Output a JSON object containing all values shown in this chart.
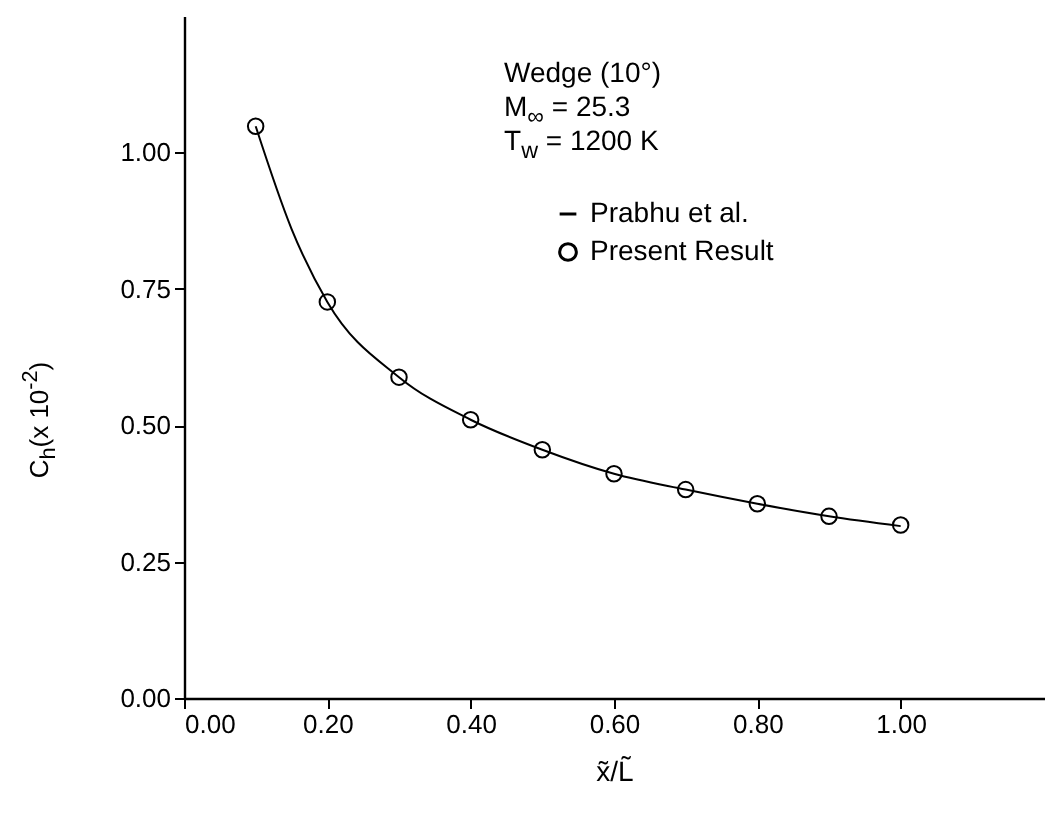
{
  "chart_data": {
    "type": "line",
    "xlabel": "x̃/L̃",
    "ylabel": "C$_{h}$(x 10$^{-2}$)",
    "annotations": [
      "Wedge (10°)",
      "M$_{∞}$ = 25.3",
      "T$_{w}$ = 1200 K"
    ],
    "xlim": [
      0,
      1.2
    ],
    "ylim": [
      0,
      1.25
    ],
    "xticks": [
      {
        "value": 0,
        "label": "0.00"
      },
      {
        "value": 0.2,
        "label": "0.20"
      },
      {
        "value": 0.4,
        "label": "0.40"
      },
      {
        "value": 0.6,
        "label": "0.60"
      },
      {
        "value": 0.8,
        "label": "0.80"
      },
      {
        "value": 1,
        "label": "1.00"
      }
    ],
    "yticks": [
      {
        "value": 0,
        "label": "0.00"
      },
      {
        "value": 0.25,
        "label": "0.25"
      },
      {
        "value": 0.5,
        "label": "0.50"
      },
      {
        "value": 0.75,
        "label": "0.75"
      },
      {
        "value": 1,
        "label": "1.00"
      }
    ],
    "legend": "top right",
    "series": [
      {
        "name": "Prabhu et al.",
        "color": "#000000",
        "line_style": "solid",
        "x": [
          0.1,
          0.15,
          0.2,
          0.3,
          0.4,
          0.5,
          0.6,
          0.7,
          0.8,
          0.9,
          1.0
        ],
        "values": [
          1.048,
          0.86,
          0.726,
          0.588,
          0.51,
          0.455,
          0.411,
          0.382,
          0.356,
          0.333,
          0.315
        ]
      },
      {
        "name": "Present Result",
        "type": "scatter",
        "color": "#000000",
        "marker": "circle",
        "x": [
          0.1,
          0.2,
          0.3,
          0.4,
          0.5,
          0.6,
          0.7,
          0.8,
          0.9,
          1.0
        ],
        "values": [
          1.048,
          0.726,
          0.588,
          0.51,
          0.455,
          0.411,
          0.382,
          0.356,
          0.333,
          0.317
        ]
      }
    ]
  }
}
